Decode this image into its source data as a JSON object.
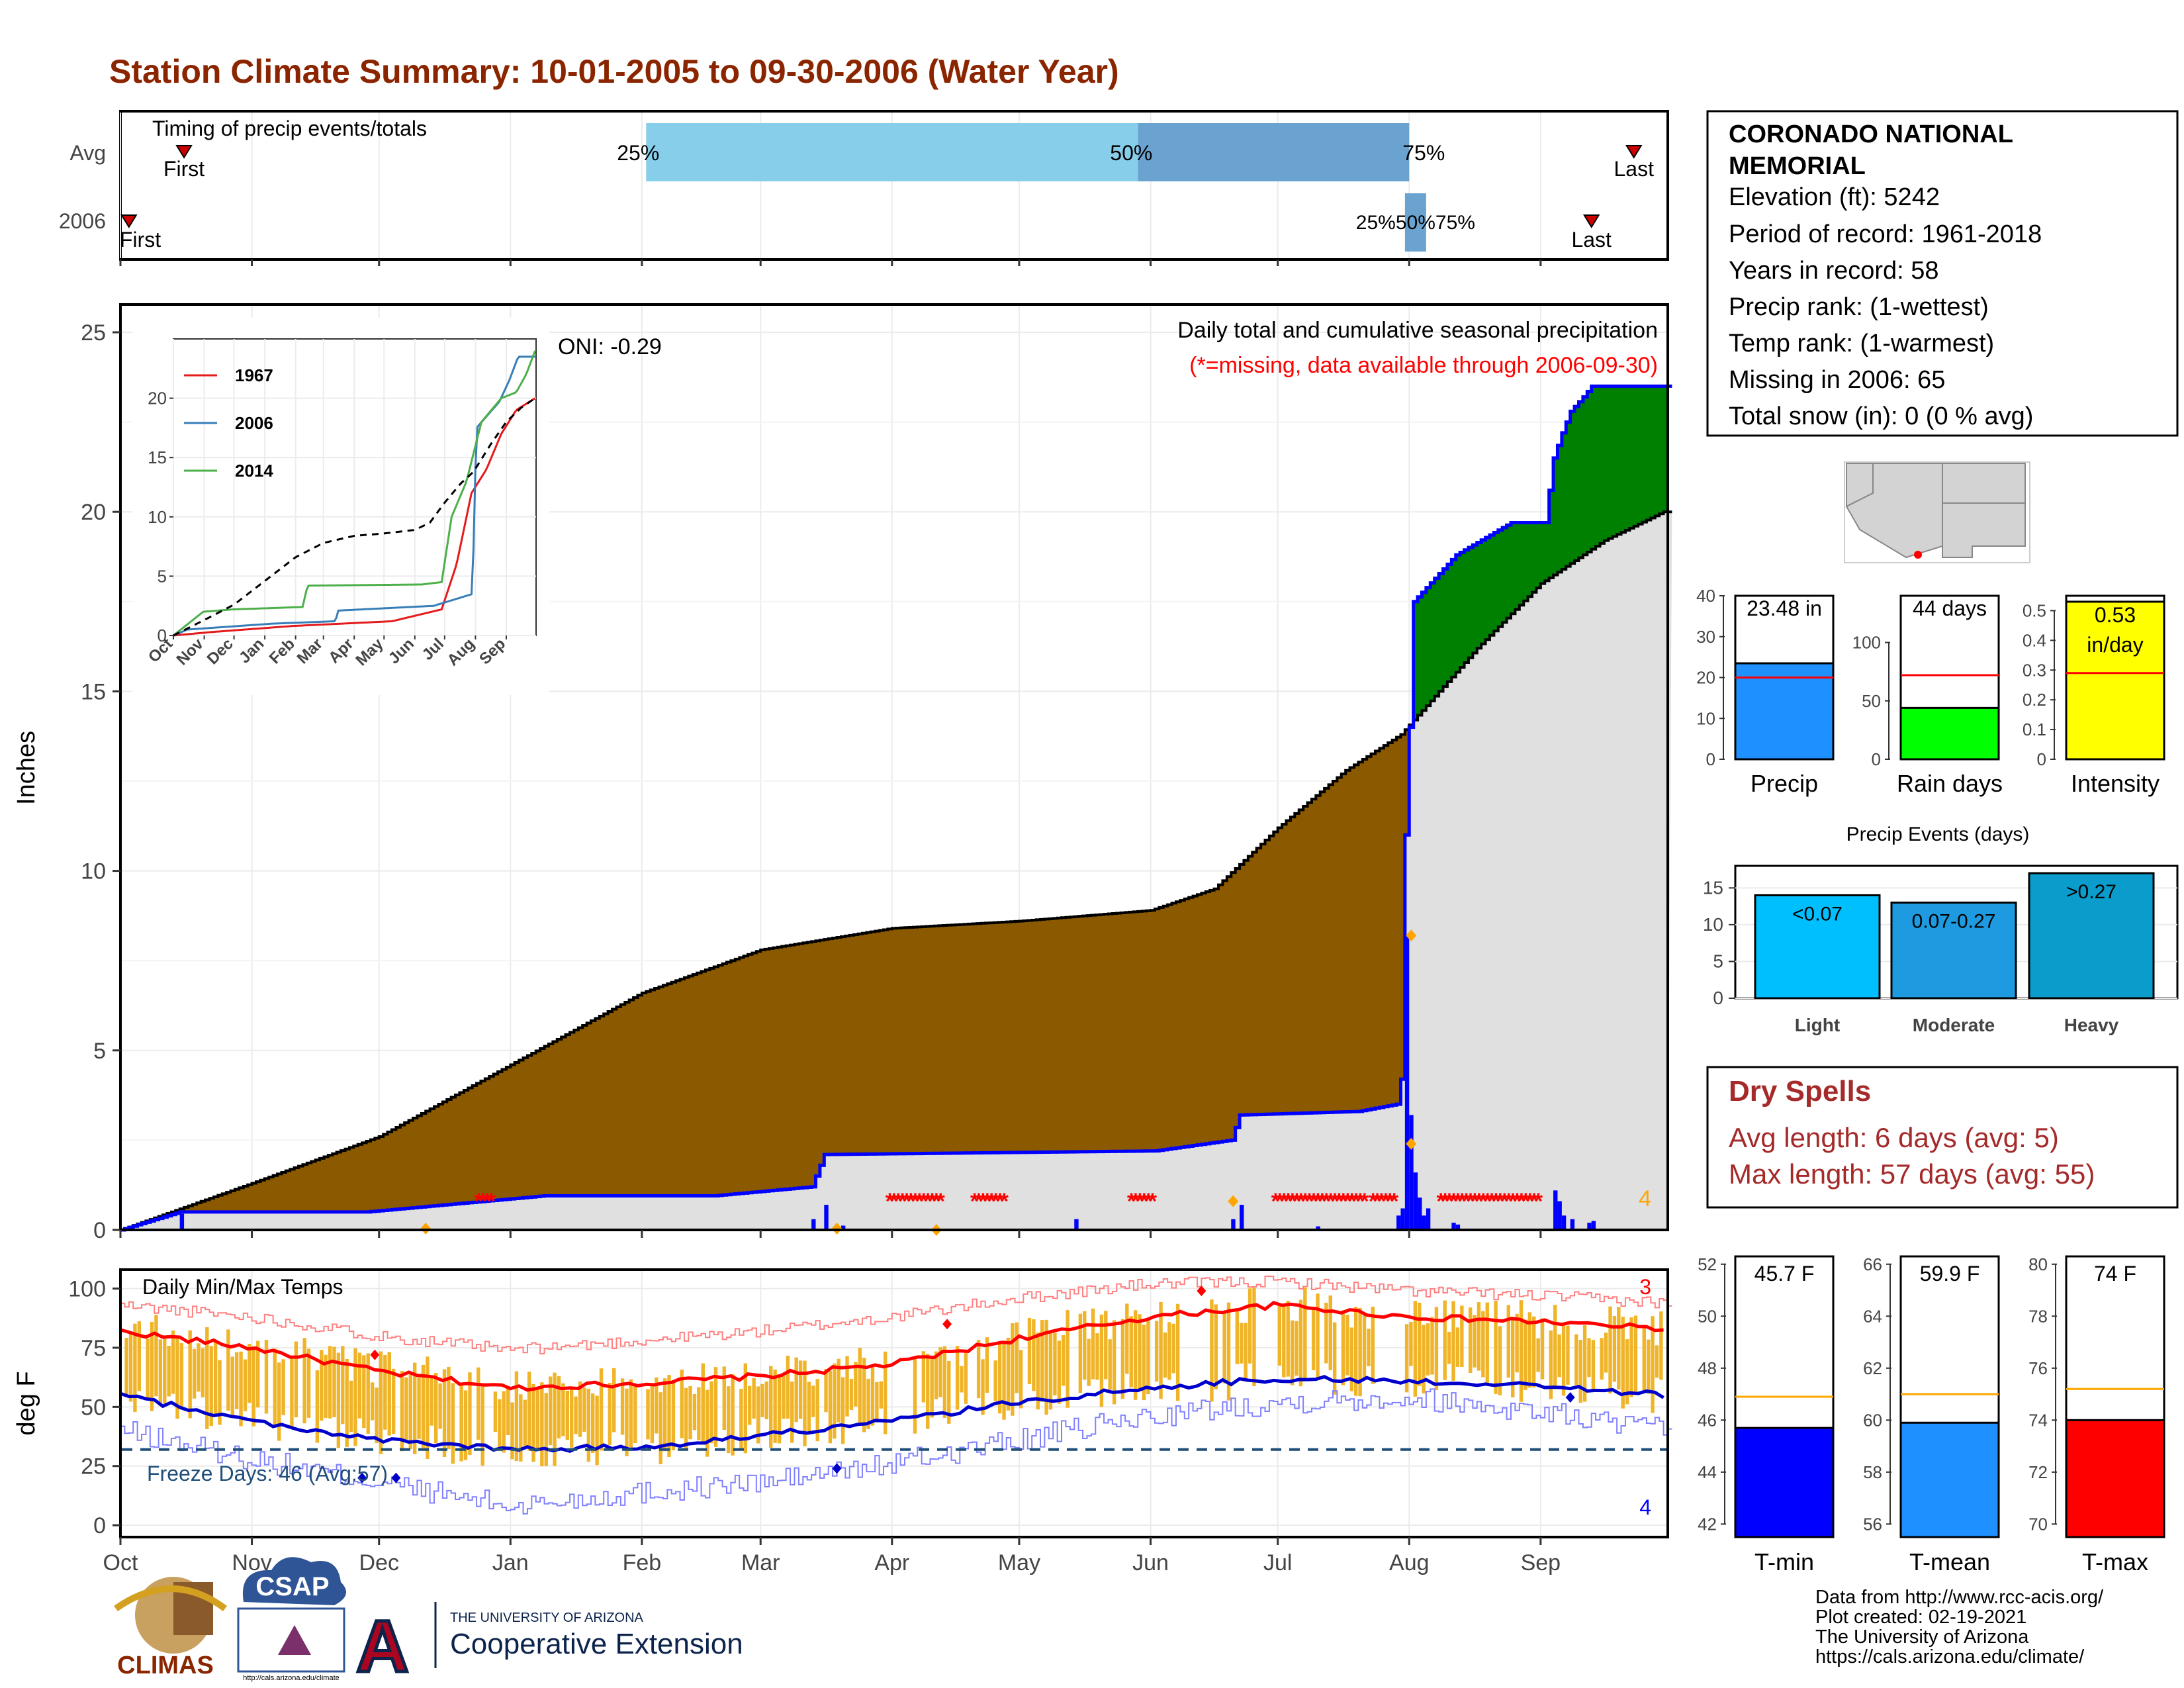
{
  "title": "Station Climate Summary: 10-01-2005 to 09-30-2006 (Water Year)",
  "colors": {
    "title": "#8B2500",
    "brown": "#8B5A00",
    "green": "#008000",
    "blue": "#0000FF",
    "gray": "#E0E0E0",
    "missing": "#FF0000",
    "orange": "#FFA500",
    "temp_bar": "#F0B429",
    "light_blue": "#87CEEB",
    "mid_blue": "#6BA3D0",
    "dry_red": "#A52A2A"
  },
  "timing": {
    "label": "Timing of precip events/totals",
    "rows": [
      "Avg",
      "2006"
    ],
    "avg": {
      "first_label": "First",
      "last_label": "Last",
      "first_day": 15,
      "last_day": 357,
      "p25_label": "25%",
      "p50_label": "50%",
      "p75_label": "75%",
      "p25_day": 124,
      "p50_day": 240,
      "p75_day": 304
    },
    "y2006": {
      "first_label": "First",
      "last_label": "Last",
      "first_day": 2,
      "last_day": 347,
      "pct_label": "25%50%75%",
      "p25_day": 303,
      "p75_day": 308
    }
  },
  "precip_panel": {
    "ylabel": "Inches",
    "oni": "ONI: -0.29",
    "caption": "Daily total and cumulative seasonal precipitation",
    "missing_note": "(*=missing, data available through 2006-09-30)",
    "corner_count": "4",
    "ylim": [
      0,
      25
    ],
    "yticks": [
      0,
      5,
      10,
      15,
      20,
      25
    ],
    "avg_cum_pts": [
      [
        0,
        0
      ],
      [
        31,
        1.3
      ],
      [
        61,
        2.6
      ],
      [
        92,
        4.6
      ],
      [
        123,
        6.6
      ],
      [
        151,
        7.8
      ],
      [
        182,
        8.4
      ],
      [
        212,
        8.6
      ],
      [
        243,
        8.9
      ],
      [
        258,
        9.5
      ],
      [
        273,
        11.2
      ],
      [
        289,
        12.8
      ],
      [
        302,
        13.8
      ],
      [
        305,
        14.2
      ],
      [
        320,
        16.2
      ],
      [
        335,
        18.0
      ],
      [
        350,
        19.2
      ],
      [
        364,
        20.0
      ]
    ],
    "obs_cum_pts": [
      [
        0,
        0
      ],
      [
        14,
        0.5
      ],
      [
        58,
        0.5
      ],
      [
        100,
        0.95
      ],
      [
        140,
        0.95
      ],
      [
        163,
        1.2
      ],
      [
        166,
        2.1
      ],
      [
        244,
        2.2
      ],
      [
        262,
        2.5
      ],
      [
        264,
        3.2
      ],
      [
        292,
        3.3
      ],
      [
        301,
        3.5
      ],
      [
        302,
        4.2
      ],
      [
        303,
        11.0
      ],
      [
        304,
        14.0
      ],
      [
        305,
        17.5
      ],
      [
        315,
        18.8
      ],
      [
        328,
        19.7
      ],
      [
        336,
        19.7
      ],
      [
        338,
        21.5
      ],
      [
        340,
        22.2
      ],
      [
        342,
        22.8
      ],
      [
        345,
        23.2
      ],
      [
        347,
        23.5
      ],
      [
        364,
        23.5
      ]
    ],
    "daily": [
      [
        14,
        0.45
      ],
      [
        72,
        0.05
      ],
      [
        163,
        0.3
      ],
      [
        166,
        0.7
      ],
      [
        170,
        0.12
      ],
      [
        225,
        0.3
      ],
      [
        262,
        0.3
      ],
      [
        264,
        0.7
      ],
      [
        282,
        0.1
      ],
      [
        301,
        0.4
      ],
      [
        302,
        0.6
      ],
      [
        303,
        8.2
      ],
      [
        304,
        3.2
      ],
      [
        305,
        1.6
      ],
      [
        306,
        0.9
      ],
      [
        307,
        0.4
      ],
      [
        308,
        0.6
      ],
      [
        314,
        0.2
      ],
      [
        315,
        0.15
      ],
      [
        338,
        1.1
      ],
      [
        339,
        0.8
      ],
      [
        340,
        0.4
      ],
      [
        342,
        0.3
      ],
      [
        346,
        0.2
      ],
      [
        347,
        0.25
      ]
    ],
    "missing_ranges": [
      [
        84,
        87
      ],
      [
        181,
        193
      ],
      [
        201,
        208
      ],
      [
        238,
        243
      ],
      [
        272,
        293
      ],
      [
        295,
        300
      ],
      [
        311,
        319
      ],
      [
        320,
        334
      ]
    ],
    "extreme_pts": [
      [
        304,
        8.2
      ],
      [
        304,
        2.4
      ],
      [
        262,
        0.8
      ],
      [
        192,
        0.0
      ]
    ]
  },
  "inset": {
    "ylim": [
      0,
      25
    ],
    "yticks": [
      0,
      5,
      10,
      15,
      20
    ],
    "xticks": [
      "Oct",
      "Nov",
      "Dec",
      "Jan",
      "Feb",
      "Mar",
      "Apr",
      "May",
      "Jun",
      "Jul",
      "Aug",
      "Sep"
    ],
    "series": [
      {
        "name": "1967",
        "color": "#E41A1C",
        "pts": [
          [
            0,
            0
          ],
          [
            40,
            0.3
          ],
          [
            120,
            0.8
          ],
          [
            220,
            1.2
          ],
          [
            270,
            2.2
          ],
          [
            285,
            6
          ],
          [
            300,
            12
          ],
          [
            315,
            14
          ],
          [
            330,
            17
          ],
          [
            345,
            19
          ],
          [
            364,
            20
          ]
        ]
      },
      {
        "name": "2006",
        "color": "#377EB8",
        "pts": [
          [
            0,
            0
          ],
          [
            14,
            0.5
          ],
          [
            100,
            1
          ],
          [
            163,
            1.2
          ],
          [
            166,
            2.1
          ],
          [
            262,
            2.5
          ],
          [
            301,
            3.5
          ],
          [
            303,
            11
          ],
          [
            305,
            17.5
          ],
          [
            328,
            19.7
          ],
          [
            338,
            21.5
          ],
          [
            347,
            23.5
          ],
          [
            364,
            23.5
          ]
        ]
      },
      {
        "name": "2014",
        "color": "#4DAF4A",
        "pts": [
          [
            0,
            0
          ],
          [
            30,
            2.0
          ],
          [
            60,
            2.2
          ],
          [
            130,
            2.4
          ],
          [
            135,
            4.2
          ],
          [
            250,
            4.3
          ],
          [
            270,
            4.5
          ],
          [
            280,
            10
          ],
          [
            295,
            13
          ],
          [
            310,
            18
          ],
          [
            330,
            20
          ],
          [
            345,
            20.5
          ],
          [
            355,
            22
          ],
          [
            364,
            24
          ]
        ]
      }
    ],
    "avg_pts": [
      [
        0,
        0
      ],
      [
        31,
        1.3
      ],
      [
        61,
        2.6
      ],
      [
        92,
        4.6
      ],
      [
        123,
        6.6
      ],
      [
        151,
        7.8
      ],
      [
        182,
        8.4
      ],
      [
        212,
        8.6
      ],
      [
        243,
        8.9
      ],
      [
        258,
        9.5
      ],
      [
        273,
        11.2
      ],
      [
        289,
        12.8
      ],
      [
        302,
        13.8
      ],
      [
        320,
        16.2
      ],
      [
        335,
        18.0
      ],
      [
        350,
        19.2
      ],
      [
        364,
        20.0
      ]
    ]
  },
  "station": {
    "name_line1": "CORONADO NATIONAL",
    "name_line2": "MEMORIAL",
    "elevation": "Elevation (ft): 5242",
    "period": "Period of record: 1961-2018",
    "years": "Years in record: 58",
    "precip_rank": "Precip rank:  (1-wettest)",
    "temp_rank": "Temp rank:  (1-warmest)",
    "missing": "Missing in 2006: 65",
    "snow": "Total snow (in): 0 (0 % avg)"
  },
  "summary_bars": [
    {
      "label": "Precip",
      "value_text": "23.48 in",
      "value": 23.48,
      "avg": 20,
      "color": "#1E90FF",
      "ylim": [
        0,
        40
      ],
      "yticks": [
        0,
        10,
        20,
        30,
        40
      ]
    },
    {
      "label": "Rain days",
      "value_text": "44 days",
      "value": 44,
      "avg": 72,
      "color": "#00FF00",
      "ylim": [
        0,
        140
      ],
      "yticks": [
        0,
        50,
        100
      ]
    },
    {
      "label": "Intensity",
      "value_text_line1": "0.53",
      "value_text_line2": "in/day",
      "value": 0.53,
      "avg": 0.29,
      "color": "#FFFF00",
      "ylim": [
        0,
        0.55
      ],
      "yticks": [
        0.0,
        0.1,
        0.2,
        0.3,
        0.4,
        0.5
      ]
    }
  ],
  "precip_events": {
    "title": "Precip Events (days)",
    "ylim": [
      0,
      18
    ],
    "yticks": [
      0,
      5,
      10,
      15
    ],
    "bars": [
      {
        "category": "Light",
        "label": "<0.07",
        "value": 14,
        "color": "#00BFFF"
      },
      {
        "category": "Moderate",
        "label": "0.07-0.27",
        "value": 13,
        "color": "#1E9BE0"
      },
      {
        "category": "Heavy",
        "label": ">0.27",
        "value": 17,
        "color": "#0A9CCB"
      }
    ]
  },
  "dry_spells": {
    "title": "Dry Spells",
    "avg": "Avg length: 6 days (avg: 5)",
    "max": "Max length: 57 days (avg: 55)"
  },
  "temp_panel": {
    "label": "Daily Min/Max Temps",
    "ylabel": "deg F",
    "freeze": "Freeze Days: 46 (Avg:57)",
    "count_high": "3",
    "count_low": "4",
    "ylim": [
      -5,
      108
    ],
    "yticks": [
      0,
      25,
      50,
      75,
      100
    ],
    "freeze_line": 32,
    "avg_max_pts": [
      [
        0,
        82
      ],
      [
        31,
        75
      ],
      [
        61,
        65
      ],
      [
        92,
        58
      ],
      [
        123,
        60
      ],
      [
        151,
        63
      ],
      [
        182,
        68
      ],
      [
        212,
        79
      ],
      [
        243,
        88
      ],
      [
        273,
        93
      ],
      [
        304,
        88
      ],
      [
        335,
        86
      ],
      [
        364,
        83
      ]
    ],
    "avg_min_pts": [
      [
        0,
        55
      ],
      [
        31,
        44
      ],
      [
        61,
        36
      ],
      [
        92,
        32
      ],
      [
        123,
        33
      ],
      [
        151,
        38
      ],
      [
        182,
        44
      ],
      [
        212,
        52
      ],
      [
        243,
        58
      ],
      [
        273,
        62
      ],
      [
        304,
        61
      ],
      [
        335,
        59
      ],
      [
        364,
        55
      ]
    ],
    "rec_max_pts": [
      [
        0,
        93
      ],
      [
        31,
        88
      ],
      [
        61,
        80
      ],
      [
        92,
        74
      ],
      [
        123,
        78
      ],
      [
        151,
        82
      ],
      [
        182,
        88
      ],
      [
        212,
        96
      ],
      [
        243,
        102
      ],
      [
        273,
        103
      ],
      [
        304,
        99
      ],
      [
        335,
        97
      ],
      [
        364,
        94
      ]
    ],
    "rec_min_pts": [
      [
        0,
        40
      ],
      [
        31,
        28
      ],
      [
        61,
        18
      ],
      [
        92,
        8
      ],
      [
        123,
        14
      ],
      [
        151,
        18
      ],
      [
        182,
        26
      ],
      [
        212,
        36
      ],
      [
        243,
        46
      ],
      [
        273,
        52
      ],
      [
        304,
        54
      ],
      [
        335,
        48
      ],
      [
        364,
        40
      ]
    ],
    "record_high_pts": [
      [
        60,
        72
      ],
      [
        195,
        85
      ],
      [
        255,
        99
      ]
    ],
    "record_low_pts": [
      [
        57,
        20
      ],
      [
        65,
        20
      ],
      [
        169,
        24
      ],
      [
        342,
        54
      ]
    ]
  },
  "x_months": [
    "Oct",
    "Nov",
    "Dec",
    "Jan",
    "Feb",
    "Mar",
    "Apr",
    "May",
    "Jun",
    "Jul",
    "Aug",
    "Sep"
  ],
  "month_starts": [
    0,
    31,
    61,
    92,
    123,
    151,
    182,
    212,
    243,
    273,
    304,
    335
  ],
  "temp_bars": [
    {
      "label": "T-min",
      "value_text": "45.7 F",
      "value": 45.7,
      "avg": 46.9,
      "color": "#0000FF",
      "ylim": [
        41.5,
        52.3
      ],
      "yticks": [
        42,
        44,
        46,
        48,
        50,
        52
      ]
    },
    {
      "label": "T-mean",
      "value_text": "59.9 F",
      "value": 59.9,
      "avg": 61.0,
      "color": "#1E90FF",
      "ylim": [
        55.5,
        66.3
      ],
      "yticks": [
        56,
        58,
        60,
        62,
        64,
        66
      ]
    },
    {
      "label": "T-max",
      "value_text": "74 F",
      "value": 74.0,
      "avg": 75.2,
      "color": "#FF0000",
      "ylim": [
        69.5,
        80.3
      ],
      "yticks": [
        70,
        72,
        74,
        76,
        78,
        80
      ]
    }
  ],
  "footer": {
    "line1": "Data from http://www.rcc-acis.org/",
    "line2": "Plot created: 02-19-2021",
    "line3": "The University of Arizona",
    "line4": "https://cals.arizona.edu/climate/",
    "climas": "CLIMAS",
    "csap": "CSAP",
    "csap_url": "http://cals.arizona.edu/climate",
    "ua_small": "THE UNIVERSITY OF ARIZONA",
    "ua_big": "Cooperative Extension",
    "ua_letter": "A"
  }
}
